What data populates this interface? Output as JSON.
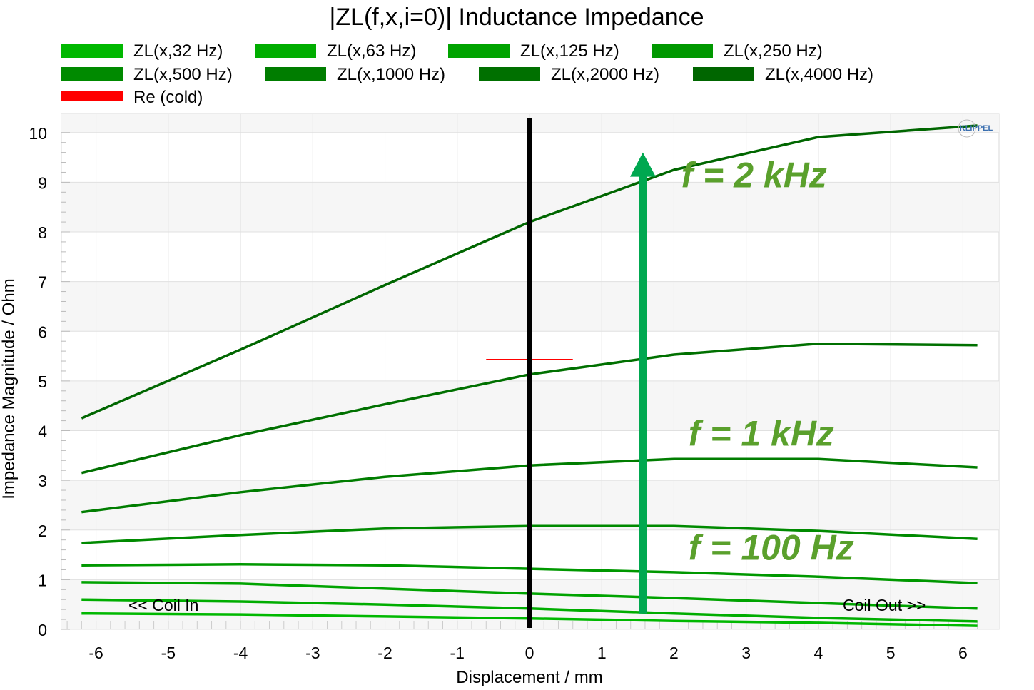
{
  "chart_data": {
    "type": "line",
    "title": "|ZL(f,x,i=0)| Inductance Impedance",
    "xlabel": "Displacement / mm",
    "ylabel": "Impedance Magnitude / Ohm",
    "xlim": [
      -6.48,
      6.5
    ],
    "ylim": [
      0,
      10.37
    ],
    "xticks": [
      -6,
      -5,
      -4,
      -3,
      -2,
      -1,
      0,
      1,
      2,
      3,
      4,
      5,
      6
    ],
    "yticks": [
      0,
      1,
      2,
      3,
      4,
      5,
      6,
      7,
      8,
      9,
      10
    ],
    "grid": true,
    "legend_position": "top",
    "x": [
      -6.2,
      -4,
      -2,
      0,
      2,
      4,
      6.2
    ],
    "series": [
      {
        "name": "ZL(x,32 Hz)",
        "color": "#00b800",
        "values": [
          0.32,
          0.3,
          0.26,
          0.22,
          0.17,
          0.13,
          0.07
        ]
      },
      {
        "name": "ZL(x,63 Hz)",
        "color": "#00ad00",
        "values": [
          0.6,
          0.56,
          0.5,
          0.42,
          0.32,
          0.23,
          0.16
        ]
      },
      {
        "name": "ZL(x,125 Hz)",
        "color": "#00a300",
        "values": [
          0.95,
          0.92,
          0.82,
          0.72,
          0.63,
          0.53,
          0.42
        ]
      },
      {
        "name": "ZL(x,250 Hz)",
        "color": "#009800",
        "values": [
          1.29,
          1.31,
          1.29,
          1.22,
          1.15,
          1.06,
          0.93
        ]
      },
      {
        "name": "ZL(x,500 Hz)",
        "color": "#008a00",
        "values": [
          1.74,
          1.9,
          2.03,
          2.08,
          2.08,
          1.98,
          1.82
        ]
      },
      {
        "name": "ZL(x,1000 Hz)",
        "color": "#007d00",
        "values": [
          2.36,
          2.76,
          3.07,
          3.3,
          3.43,
          3.43,
          3.26
        ]
      },
      {
        "name": "ZL(x,2000 Hz)",
        "color": "#007000",
        "values": [
          3.15,
          3.91,
          4.53,
          5.13,
          5.53,
          5.75,
          5.72
        ]
      },
      {
        "name": "ZL(x,4000 Hz)",
        "color": "#006600",
        "values": [
          4.25,
          5.63,
          6.93,
          8.2,
          9.25,
          9.91,
          10.14
        ]
      }
    ],
    "re_cold": {
      "name": "Re (cold)",
      "color": "#ff0000",
      "value": 5.43,
      "x_range": [
        -0.6,
        0.6
      ]
    },
    "rest_position_marker": 0,
    "arrow": {
      "x": 1.57,
      "from": 0.32,
      "to": 9.6,
      "color": "#00a850"
    },
    "annotations": [
      {
        "text": "f = 2 kHz",
        "x": 2.1,
        "y": 8.9
      },
      {
        "text": "f = 1 kHz",
        "x": 2.2,
        "y": 3.7
      },
      {
        "text": "f = 100 Hz",
        "x": 2.2,
        "y": 1.4
      }
    ],
    "coil_in_label": "<< Coil In",
    "coil_out_label": "Coil Out >>",
    "logo": "KLIPPEL"
  }
}
